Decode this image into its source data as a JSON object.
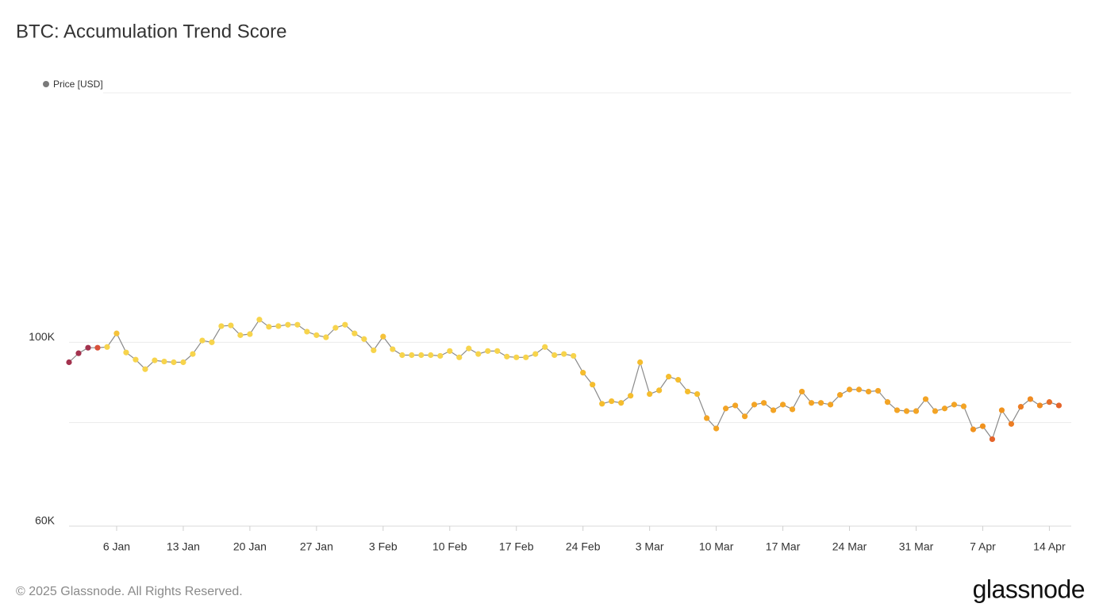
{
  "chart_data": {
    "type": "line",
    "title": "BTC: Accumulation Trend Score",
    "legend": {
      "label": "Price [USD]",
      "color": "#7a7a7a",
      "corner": "top-left"
    },
    "footer": "© 2025 Glassnode. All Rights Reserved.",
    "brand": "glassnode",
    "log_scale": true,
    "grid": true,
    "line_color": "#8a8a8a",
    "ylim": [
      60000,
      200000
    ],
    "yticks": [
      {
        "value": 60000,
        "label": "60K"
      },
      {
        "value": 100000,
        "label": "100K"
      }
    ],
    "unlabeled_gridlines": [
      80000,
      200000
    ],
    "xlim": [
      1,
      106.3
    ],
    "xticks": [
      {
        "value": 6,
        "label": "6 Jan"
      },
      {
        "value": 13,
        "label": "13 Jan"
      },
      {
        "value": 20,
        "label": "20 Jan"
      },
      {
        "value": 27,
        "label": "27 Jan"
      },
      {
        "value": 34,
        "label": "3 Feb"
      },
      {
        "value": 41,
        "label": "10 Feb"
      },
      {
        "value": 48,
        "label": "17 Feb"
      },
      {
        "value": 55,
        "label": "24 Feb"
      },
      {
        "value": 62,
        "label": "3 Mar"
      },
      {
        "value": 69,
        "label": "10 Mar"
      },
      {
        "value": 76,
        "label": "17 Mar"
      },
      {
        "value": 83,
        "label": "24 Mar"
      },
      {
        "value": 90,
        "label": "31 Mar"
      },
      {
        "value": 97,
        "label": "7 Apr"
      },
      {
        "value": 104,
        "label": "14 Apr"
      }
    ],
    "x": [
      1,
      2,
      3,
      4,
      5,
      6,
      7,
      8,
      9,
      10,
      11,
      12,
      13,
      14,
      15,
      16,
      17,
      18,
      19,
      20,
      21,
      22,
      23,
      24,
      25,
      26,
      27,
      28,
      29,
      30,
      31,
      32,
      33,
      34,
      35,
      36,
      37,
      38,
      39,
      40,
      41,
      42,
      43,
      44,
      45,
      46,
      47,
      48,
      49,
      50,
      51,
      52,
      53,
      54,
      55,
      56,
      57,
      58,
      59,
      60,
      61,
      62,
      63,
      64,
      65,
      66,
      67,
      68,
      69,
      70,
      71,
      72,
      73,
      74,
      75,
      76,
      77,
      78,
      79,
      80,
      81,
      82,
      83,
      84,
      85,
      86,
      87,
      88,
      89,
      90,
      91,
      92,
      93,
      94,
      95,
      96,
      97,
      98,
      99,
      100,
      101,
      102,
      103,
      104,
      105
    ],
    "values": [
      94600,
      97000,
      98500,
      98500,
      98700,
      102500,
      97200,
      95300,
      92800,
      95100,
      94800,
      94600,
      94600,
      96800,
      100500,
      100000,
      104600,
      104800,
      102000,
      102300,
      106500,
      104400,
      104600,
      105000,
      105000,
      103000,
      102000,
      101400,
      104100,
      105000,
      102500,
      100900,
      97800,
      101600,
      98100,
      96500,
      96500,
      96500,
      96500,
      96300,
      97600,
      95900,
      98300,
      96800,
      97600,
      97600,
      96100,
      95900,
      95900,
      96800,
      98700,
      96500,
      96800,
      96300,
      91900,
      88900,
      84300,
      84900,
      84500,
      86200,
      94600,
      86600,
      87500,
      90900,
      90100,
      87200,
      86600,
      81000,
      78700,
      83200,
      83900,
      81400,
      84100,
      84500,
      82800,
      84100,
      83000,
      87200,
      84500,
      84500,
      84100,
      86400,
      87700,
      87700,
      87200,
      87400,
      84700,
      82800,
      82600,
      82600,
      85400,
      82600,
      83200,
      84100,
      83700,
      78500,
      79200,
      76400,
      82800,
      79700,
      83600,
      85400,
      83900,
      84700,
      83900
    ],
    "colors": [
      "#a3324e",
      "#a3324e",
      "#a3324e",
      "#d9513a",
      "#f7d44c",
      "#f5c23a",
      "#f7d44c",
      "#f7d44c",
      "#f7d44c",
      "#f7d44c",
      "#f7d44c",
      "#f7d44c",
      "#f7d44c",
      "#f7d44c",
      "#f7d44c",
      "#f7d44c",
      "#f7d44c",
      "#f7d44c",
      "#f7d44c",
      "#f7d44c",
      "#f7d44c",
      "#f7d44c",
      "#f7d44c",
      "#f7d44c",
      "#f7d44c",
      "#f7d44c",
      "#f7d44c",
      "#f7d44c",
      "#f7d44c",
      "#f7d44c",
      "#f7d44c",
      "#f7d44c",
      "#f7d44c",
      "#f5c23a",
      "#f7d44c",
      "#f7d44c",
      "#f7d44c",
      "#f7d44c",
      "#f7d44c",
      "#f7d44c",
      "#f7d44c",
      "#f7d44c",
      "#f7d44c",
      "#f7d44c",
      "#f7d44c",
      "#f7d44c",
      "#f7d44c",
      "#f7d44c",
      "#f7d44c",
      "#f7d44c",
      "#f7d44c",
      "#f7d44c",
      "#f7d44c",
      "#f7d44c",
      "#f5bd2e",
      "#f5bd2e",
      "#f5bd2e",
      "#f5bd2e",
      "#f5bd2e",
      "#f5bd2e",
      "#f5bd2e",
      "#f5bd2e",
      "#f5bd2e",
      "#f5bd2e",
      "#f5bd2e",
      "#f5bd2e",
      "#f5bd2e",
      "#f3a425",
      "#f3a425",
      "#f3a425",
      "#f3a425",
      "#f3a425",
      "#f3a425",
      "#f3a425",
      "#f3a425",
      "#f3a425",
      "#f3a425",
      "#f3a425",
      "#f3a425",
      "#f3a425",
      "#f3a425",
      "#f3a425",
      "#f3a425",
      "#f3a425",
      "#f3a425",
      "#f3a425",
      "#f3a425",
      "#f3a425",
      "#f3a425",
      "#f3a425",
      "#f3a425",
      "#f3a425",
      "#f3a425",
      "#f3a425",
      "#f3a425",
      "#f0921e",
      "#f0921e",
      "#e5642a",
      "#f0921e",
      "#ec7d24",
      "#ec7d24",
      "#ef8b22",
      "#ef8b22",
      "#e8702a",
      "#e5642a"
    ]
  }
}
